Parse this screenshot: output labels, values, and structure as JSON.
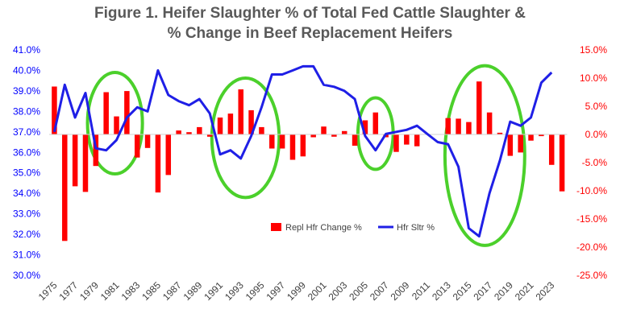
{
  "chart_data": {
    "type": "bar+line",
    "title_line1": "Figure 1.  Heifer Slaughter % of Total Fed Cattle Slaughter &",
    "title_line2": "% Change in Beef Replacement Heifers",
    "years": [
      1975,
      1976,
      1977,
      1978,
      1979,
      1980,
      1981,
      1982,
      1983,
      1984,
      1985,
      1986,
      1987,
      1988,
      1989,
      1990,
      1991,
      1992,
      1993,
      1994,
      1995,
      1996,
      1997,
      1998,
      1999,
      2000,
      2001,
      2002,
      2003,
      2004,
      2005,
      2006,
      2007,
      2008,
      2009,
      2010,
      2011,
      2012,
      2013,
      2014,
      2015,
      2016,
      2017,
      2018,
      2019,
      2020,
      2021,
      2022,
      2023,
      2024
    ],
    "x_tick_labels": [
      "1975",
      "1977",
      "1979",
      "1981",
      "1983",
      "1985",
      "1987",
      "1989",
      "1991",
      "1993",
      "1995",
      "1997",
      "1999",
      "2001",
      "2003",
      "2005",
      "2007",
      "2009",
      "2011",
      "2013",
      "2015",
      "2017",
      "2019",
      "2021",
      "2023"
    ],
    "series": [
      {
        "name": "Repl Hfr Change %",
        "type": "bar",
        "axis": "right",
        "color": "#ff0000",
        "values": [
          8.5,
          -18.9,
          -9.2,
          -10.2,
          -5.6,
          7.5,
          3.2,
          7.7,
          -4.1,
          -2.4,
          -10.3,
          -7.2,
          0.7,
          0.4,
          1.3,
          -0.4,
          3.0,
          3.7,
          8.0,
          4.3,
          1.3,
          -2.5,
          -2.5,
          -4.5,
          -3.9,
          -0.5,
          1.4,
          -0.4,
          0.6,
          -2.0,
          2.5,
          3.9,
          -0.5,
          -3.1,
          -1.8,
          -2.1,
          0.0,
          0.0,
          2.9,
          2.8,
          2.2,
          9.4,
          3.9,
          0.3,
          -3.8,
          -3.2,
          -1.1,
          -0.3,
          -5.4,
          -10.1
        ]
      },
      {
        "name": "Hfr Sltr %",
        "type": "line",
        "axis": "left",
        "color": "#1f1fe6",
        "values": [
          37.0,
          39.3,
          37.7,
          38.9,
          36.2,
          36.1,
          36.6,
          37.7,
          38.2,
          38.0,
          40.0,
          38.8,
          38.5,
          38.3,
          38.6,
          37.9,
          35.9,
          36.1,
          35.7,
          36.8,
          38.2,
          39.8,
          39.8,
          40.0,
          40.2,
          40.2,
          39.3,
          39.2,
          39.0,
          38.6,
          36.8,
          36.1,
          36.9,
          37.0,
          37.1,
          37.3,
          36.9,
          36.5,
          36.4,
          35.3,
          32.3,
          31.9,
          34.0,
          35.6,
          37.5,
          37.3,
          37.7,
          39.4,
          39.9
        ]
      }
    ],
    "left_axis": {
      "min": 30.0,
      "max": 41.0,
      "step": 1.0,
      "tick_labels": [
        "30.0%",
        "31.0%",
        "32.0%",
        "33.0%",
        "34.0%",
        "35.0%",
        "36.0%",
        "37.0%",
        "38.0%",
        "39.0%",
        "40.0%",
        "41.0%"
      ]
    },
    "right_axis": {
      "min": -25.0,
      "max": 15.0,
      "step": 5.0,
      "tick_labels": [
        "-25.0%",
        "-20.0%",
        "-15.0%",
        "-10.0%",
        "-5.0%",
        "0.0%",
        "5.0%",
        "10.0%",
        "15.0%"
      ]
    },
    "legend": {
      "position": "bottom-center",
      "bar_label": "Repl Hfr Change %",
      "line_label": "Hfr Sltr %"
    },
    "annotations": [
      {
        "type": "ellipse",
        "color": "#4bd02b",
        "year_start": 1978.2,
        "year_end": 1983.5,
        "right_axis_top": 11.0,
        "right_axis_bottom": -7.0
      },
      {
        "type": "ellipse",
        "color": "#4bd02b",
        "year_start": 1990.2,
        "year_end": 1996.7,
        "right_axis_top": 10.0,
        "right_axis_bottom": -11.2
      },
      {
        "type": "ellipse",
        "color": "#4bd02b",
        "year_start": 2004.3,
        "year_end": 2007.7,
        "right_axis_top": 6.5,
        "right_axis_bottom": -6.2
      },
      {
        "type": "ellipse",
        "color": "#4bd02b",
        "year_start": 2012.7,
        "year_end": 2020.4,
        "right_axis_top": 12.2,
        "right_axis_bottom": -19.7
      }
    ],
    "grid": false
  }
}
